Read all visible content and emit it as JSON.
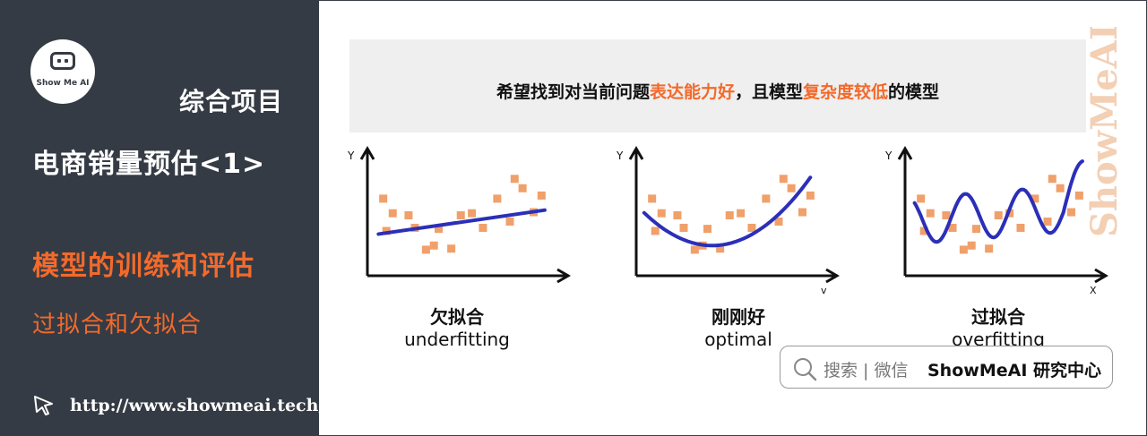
{
  "sidebar": {
    "logo_text": "Show Me AI",
    "course": "综合项目",
    "project": "电商销量预估<1>",
    "chapter": "模型的训练和评估",
    "section": "过拟合和欠拟合",
    "url": "http://www.showmeai.tech/"
  },
  "banner": {
    "part1": "希望找到对当前问题",
    "highlight1": "表达能力好",
    "part2": "，且模型",
    "highlight2": "复杂度较低",
    "part3": "的模型"
  },
  "watermark": "ShowMeAI",
  "chart_data": [
    {
      "type": "scatter",
      "caption_zh": "欠拟合",
      "caption_en": "underfitting",
      "ylabel": "Y",
      "xlabel": "",
      "points": [
        [
          1,
          7.4
        ],
        [
          1.6,
          6.0
        ],
        [
          1.2,
          4.3
        ],
        [
          2.6,
          5.8
        ],
        [
          3.0,
          4.6
        ],
        [
          3.7,
          2.5
        ],
        [
          4.2,
          2.9
        ],
        [
          4.5,
          4.5
        ],
        [
          5.3,
          2.6
        ],
        [
          5.9,
          5.8
        ],
        [
          6.6,
          6.0
        ],
        [
          7.3,
          4.6
        ],
        [
          8.2,
          7.4
        ],
        [
          9.0,
          5.2
        ],
        [
          9.3,
          9.3
        ],
        [
          9.8,
          8.4
        ],
        [
          10.5,
          6.1
        ],
        [
          11.0,
          7.7
        ]
      ],
      "fit": "linear"
    },
    {
      "type": "scatter",
      "caption_zh": "刚刚好",
      "caption_en": "optimal",
      "ylabel": "Y",
      "xlabel": "v",
      "points": [
        [
          1,
          7.4
        ],
        [
          1.6,
          6.0
        ],
        [
          1.2,
          4.3
        ],
        [
          2.6,
          5.8
        ],
        [
          3.0,
          4.6
        ],
        [
          3.7,
          2.5
        ],
        [
          4.2,
          2.9
        ],
        [
          4.5,
          4.5
        ],
        [
          5.3,
          2.6
        ],
        [
          5.9,
          5.8
        ],
        [
          6.6,
          6.0
        ],
        [
          7.3,
          4.6
        ],
        [
          8.2,
          7.4
        ],
        [
          9.0,
          5.2
        ],
        [
          9.3,
          9.3
        ],
        [
          9.8,
          8.4
        ],
        [
          10.5,
          6.1
        ],
        [
          11.0,
          7.7
        ]
      ],
      "fit": "quadratic"
    },
    {
      "type": "scatter",
      "caption_zh": "过拟合",
      "caption_en": "overfitting",
      "ylabel": "Y",
      "xlabel": "X",
      "points": [
        [
          1,
          7.4
        ],
        [
          1.6,
          6.0
        ],
        [
          1.2,
          4.3
        ],
        [
          2.6,
          5.8
        ],
        [
          3.0,
          4.6
        ],
        [
          3.7,
          2.5
        ],
        [
          4.2,
          2.9
        ],
        [
          4.5,
          4.5
        ],
        [
          5.3,
          2.6
        ],
        [
          5.9,
          5.8
        ],
        [
          6.6,
          6.0
        ],
        [
          7.3,
          4.6
        ],
        [
          8.2,
          7.4
        ],
        [
          9.0,
          5.2
        ],
        [
          9.3,
          9.3
        ],
        [
          9.8,
          8.4
        ],
        [
          10.5,
          6.1
        ],
        [
          11.0,
          7.7
        ]
      ],
      "fit": "interpolating"
    }
  ],
  "search": {
    "hint": "搜索 | 微信",
    "brand": "ShowMeAI 研究中心"
  },
  "colors": {
    "accent": "#f36a2b",
    "panel": "#353b44",
    "curve": "#2b2fb8",
    "point": "#f0a06a"
  }
}
